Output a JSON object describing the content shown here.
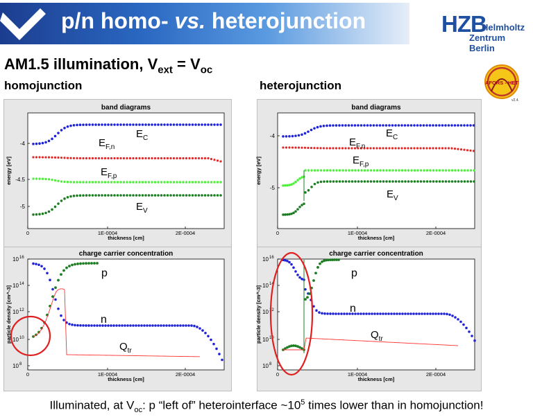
{
  "header": {
    "title_main": "p/n homo-",
    "title_vs": "vs.",
    "title_rest": "heterojunction"
  },
  "logo": {
    "mark": "HZB",
    "line1": "Helmholtz",
    "line2": "Zentrum Berlin"
  },
  "subtitle": {
    "prefix": "AM1.5 illumination, V",
    "sub1": "ext",
    "mid": " = V",
    "sub2": "oc"
  },
  "columns": {
    "left": "homojunction",
    "right": "heterojunction"
  },
  "afors": {
    "text": "AFORS - HET",
    "version": "v2.4."
  },
  "plot_labels": {
    "band_title": "band diagrams",
    "carrier_title": "charge carrier concentration",
    "xlabel": "thickness [cm]",
    "band_ylabel": "energy [eV]",
    "carrier_ylabel": "particle density [cm^-3]",
    "x_ticks": [
      "0",
      "1E-0004",
      "2E-0004"
    ],
    "band_y_ticks_left": [
      "-4",
      "-4.5",
      "-5"
    ],
    "band_y_ticks_right": [
      "-4",
      "-5"
    ],
    "carrier_y_ticks": [
      "10",
      "10",
      "10",
      "10",
      "10"
    ],
    "carrier_y_exp": [
      "16",
      "14",
      "12",
      "10",
      "8"
    ]
  },
  "annotations": {
    "EC": {
      "main": "E",
      "sub": "C"
    },
    "EFn": {
      "main": "E",
      "sub": "F,n"
    },
    "EFp": {
      "main": "E",
      "sub": "F,p"
    },
    "EV": {
      "main": "E",
      "sub": "V"
    },
    "p": "p",
    "n": "n",
    "Qtr": {
      "main": "Q",
      "sub": "tr"
    }
  },
  "footer": {
    "a": "Illuminated, at V",
    "a_sub": "oc",
    "b": ": p “left of” heterointerface ~10",
    "b_sup": "5",
    "c": " times lower than in homojunction!"
  },
  "colors": {
    "ec": "#1e22d8",
    "efn": "#e32626",
    "efp": "#4ff03c",
    "ev": "#1d7d22",
    "qtr": "#ff3030",
    "circle": "#e02020"
  }
}
